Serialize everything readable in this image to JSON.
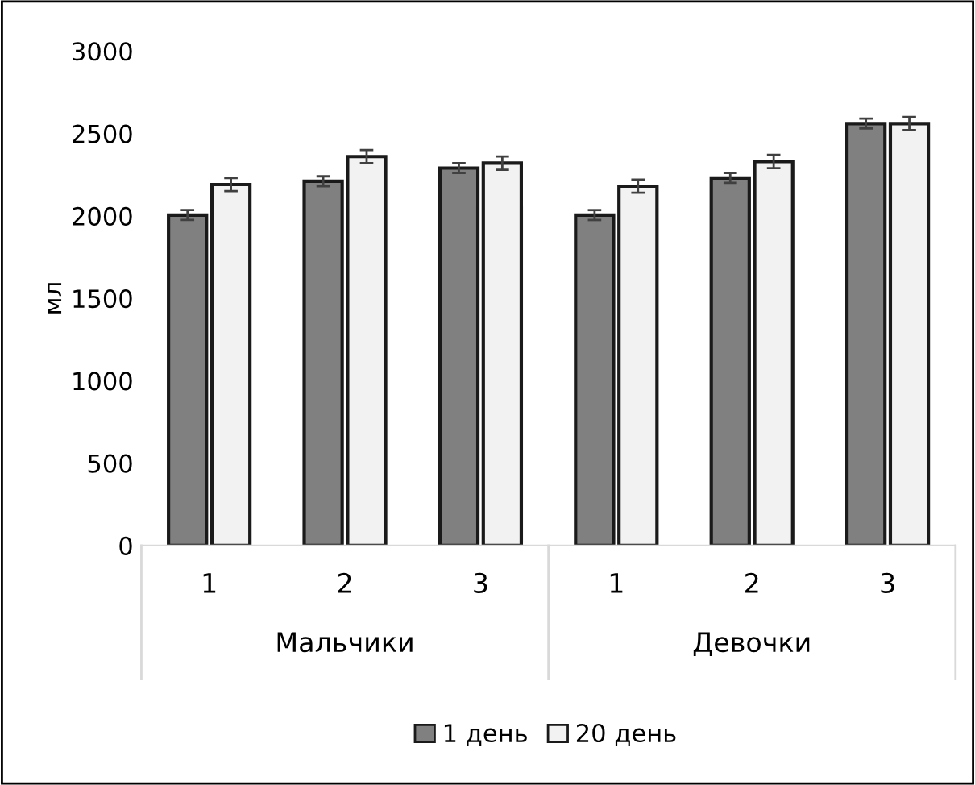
{
  "chart_data": {
    "type": "bar",
    "ylabel": "мл",
    "categories": [
      "1",
      "2",
      "3",
      "1",
      "2",
      "3"
    ],
    "annotations": [
      "Мальчики",
      "Девочки"
    ],
    "series": [
      {
        "name": "1 день",
        "color": "#808080",
        "values": [
          2005,
          2210,
          2290,
          2005,
          2230,
          2560
        ],
        "errors": [
          30,
          30,
          30,
          30,
          30,
          30
        ]
      },
      {
        "name": "20 день",
        "color": "#f2f2f2",
        "values": [
          2190,
          2360,
          2320,
          2180,
          2330,
          2560
        ],
        "errors": [
          40,
          40,
          40,
          40,
          40,
          40
        ]
      }
    ],
    "ylim": [
      0,
      3000
    ],
    "yticks": [
      0,
      500,
      1000,
      1500,
      2000,
      2500,
      3000
    ],
    "grid": false,
    "legend": "bottom"
  }
}
